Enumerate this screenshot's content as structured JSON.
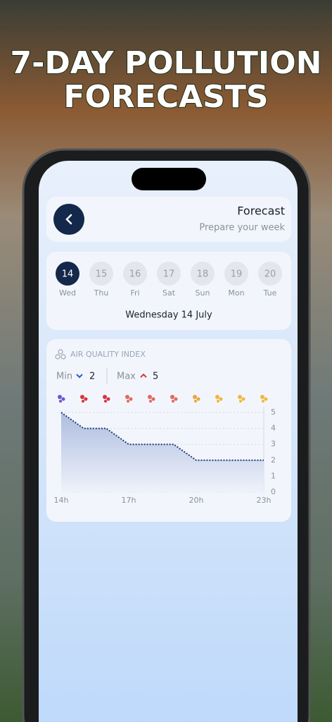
{
  "headline": {
    "lines": [
      "7-DAY POLLUTION",
      "FORECASTS"
    ]
  },
  "header": {
    "title": "Forecast",
    "subtitle": "Prepare your week"
  },
  "days": [
    {
      "day": "14",
      "weekday": "Wed",
      "selected": true
    },
    {
      "day": "15",
      "weekday": "Thu",
      "selected": false
    },
    {
      "day": "16",
      "weekday": "Fri",
      "selected": false
    },
    {
      "day": "17",
      "weekday": "Sat",
      "selected": false
    },
    {
      "day": "18",
      "weekday": "Sun",
      "selected": false
    },
    {
      "day": "19",
      "weekday": "Mon",
      "selected": false
    },
    {
      "day": "20",
      "weekday": "Tue",
      "selected": false
    }
  ],
  "selected_date": "Wednesday 14 July",
  "aqi_summary": {
    "title": "AIR QUALITY INDEX",
    "min_label": "Min",
    "min": "2",
    "max_label": "Max",
    "max": "5"
  },
  "chart_data": {
    "type": "area-line",
    "categories": [
      "14h",
      null,
      null,
      "17h",
      null,
      null,
      "20h",
      null,
      null,
      "23h"
    ],
    "values": [
      5,
      4,
      4,
      3,
      3,
      3,
      2,
      2,
      2,
      2
    ],
    "point_colors": [
      "#6a55d4",
      "#d8343a",
      "#d8343a",
      "#e4685e",
      "#e4685e",
      "#e4685e",
      "#f0a33a",
      "#f2b63c",
      "#f2b63c",
      "#f2b63c"
    ],
    "color": "#1f3a7a",
    "ylim": [
      0,
      5
    ],
    "yticks": [
      0,
      1,
      2,
      3,
      4,
      5
    ],
    "grid": true
  }
}
